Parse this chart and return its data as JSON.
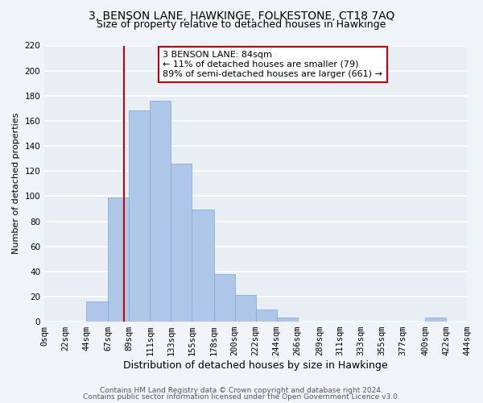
{
  "title": "3, BENSON LANE, HAWKINGE, FOLKESTONE, CT18 7AQ",
  "subtitle": "Size of property relative to detached houses in Hawkinge",
  "xlabel": "Distribution of detached houses by size in Hawkinge",
  "ylabel": "Number of detached properties",
  "bin_edges": [
    0,
    22,
    44,
    67,
    89,
    111,
    133,
    155,
    178,
    200,
    222,
    244,
    266,
    289,
    311,
    333,
    355,
    377,
    400,
    422,
    444
  ],
  "bin_labels": [
    "0sqm",
    "22sqm",
    "44sqm",
    "67sqm",
    "89sqm",
    "111sqm",
    "133sqm",
    "155sqm",
    "178sqm",
    "200sqm",
    "222sqm",
    "244sqm",
    "266sqm",
    "289sqm",
    "311sqm",
    "333sqm",
    "355sqm",
    "377sqm",
    "400sqm",
    "422sqm",
    "444sqm"
  ],
  "counts": [
    0,
    0,
    16,
    99,
    168,
    176,
    126,
    89,
    38,
    21,
    10,
    3,
    0,
    0,
    0,
    0,
    0,
    0,
    3,
    0
  ],
  "bar_color": "#aec6e8",
  "bar_edge_color": "#aec6e8",
  "bar_border_color": "#7aa8d4",
  "vline_x": 84,
  "vline_color": "#cc0000",
  "annotation_text": "3 BENSON LANE: 84sqm\n← 11% of detached houses are smaller (79)\n89% of semi-detached houses are larger (661) →",
  "annotation_box_color": "#ffffff",
  "annotation_box_edge": "#cc0000",
  "ylim": [
    0,
    220
  ],
  "yticks": [
    0,
    20,
    40,
    60,
    80,
    100,
    120,
    140,
    160,
    180,
    200,
    220
  ],
  "footer1": "Contains HM Land Registry data © Crown copyright and database right 2024.",
  "footer2": "Contains public sector information licensed under the Open Government Licence v3.0.",
  "background_color": "#f0f4f8",
  "plot_bg_color": "#e8eef4",
  "grid_color": "#ffffff",
  "title_fontsize": 10,
  "subtitle_fontsize": 9,
  "xlabel_fontsize": 9,
  "ylabel_fontsize": 8,
  "tick_fontsize": 7.5,
  "annot_fontsize": 8,
  "footer_fontsize": 6.5
}
